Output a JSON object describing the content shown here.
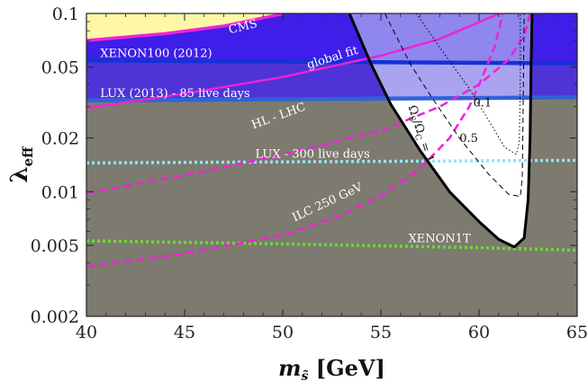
{
  "chart_data": {
    "type": "line",
    "xlabel_main": "m",
    "xlabel_sub": "s̃",
    "xlabel_unit": " [GeV]",
    "ylabel_main": "λ",
    "ylabel_sub": "eff",
    "xlim": [
      40,
      65
    ],
    "ylim": [
      0.002,
      0.1
    ],
    "yscale": "log",
    "x_ticks": [
      40,
      45,
      50,
      55,
      60,
      65
    ],
    "y_ticks": [
      0.002,
      0.005,
      0.01,
      0.02,
      0.05,
      0.1
    ],
    "y_tick_labels": [
      "0.002",
      "0.005",
      "0.01",
      "0.02",
      "0.05",
      "0.1"
    ],
    "colors": {
      "excluded_gray": "#7d7a6f",
      "blue_strong": "#3e1ee8",
      "blue_light": "#a9a3f0",
      "cms_yellow": "#fdf7a6",
      "magenta": "#ee22d8",
      "xenon100_line": "#1432d6",
      "lux2013_line": "#2f63d8",
      "lux300_line": "#8fe6f2",
      "xenon1t_line": "#66dd33",
      "allowed": "#ffffff"
    },
    "regions": [
      {
        "name": "excluded-gray",
        "label": ""
      },
      {
        "name": "XENON100 (2012)",
        "y_lower": 0.053
      },
      {
        "name": "LUX (2013) - 85 live days",
        "y_lower": 0.0315
      },
      {
        "name": "CMS",
        "label": "CMS"
      }
    ],
    "series": [
      {
        "name": "XENON100 (2012)",
        "style": "solid",
        "points": [
          [
            40,
            0.0545
          ],
          [
            65,
            0.0525
          ]
        ]
      },
      {
        "name": "LUX (2013) - 85 live days",
        "style": "solid",
        "points": [
          [
            40,
            0.0325
          ],
          [
            65,
            0.0338
          ]
        ]
      },
      {
        "name": "LUX - 300 live days",
        "style": "dotted",
        "points": [
          [
            40,
            0.0145
          ],
          [
            65,
            0.015
          ]
        ]
      },
      {
        "name": "XENON1T",
        "style": "dotted",
        "points": [
          [
            40,
            0.0053
          ],
          [
            50,
            0.0051
          ],
          [
            60,
            0.00485
          ],
          [
            65,
            0.0047
          ]
        ]
      },
      {
        "name": "CMS",
        "style": "solid",
        "points": [
          [
            40,
            0.0705
          ],
          [
            44,
            0.077
          ],
          [
            47,
            0.085
          ],
          [
            50,
            0.0995
          ]
        ]
      },
      {
        "name": "global fit",
        "style": "solid",
        "points": [
          [
            40,
            0.0295
          ],
          [
            45,
            0.0355
          ],
          [
            50,
            0.044
          ],
          [
            55,
            0.058
          ],
          [
            58,
            0.072
          ],
          [
            61,
            0.0995
          ]
        ]
      },
      {
        "name": "HL - LHC",
        "style": "dashed",
        "points": [
          [
            40,
            0.0098
          ],
          [
            45,
            0.0124
          ],
          [
            50,
            0.0161
          ],
          [
            55,
            0.022
          ],
          [
            58,
            0.03
          ],
          [
            60,
            0.04
          ],
          [
            61.5,
            0.055
          ],
          [
            62.3,
            0.075
          ],
          [
            62.6,
            0.099
          ]
        ]
      },
      {
        "name": "ILC 250 GeV",
        "style": "dashed",
        "points": [
          [
            40,
            0.0038
          ],
          [
            45,
            0.0045
          ],
          [
            50,
            0.0057
          ],
          [
            53,
            0.0074
          ],
          [
            55,
            0.0095
          ],
          [
            57,
            0.0135
          ],
          [
            58.5,
            0.02
          ],
          [
            59.5,
            0.03
          ],
          [
            60.2,
            0.045
          ],
          [
            60.8,
            0.065
          ],
          [
            61.2,
            0.099
          ]
        ]
      },
      {
        "name": "Ω_S/Ω_C = 1",
        "style": "solid",
        "points": [
          [
            53.4,
            0.1
          ],
          [
            54.5,
            0.052
          ],
          [
            55.5,
            0.031
          ],
          [
            57,
            0.017
          ],
          [
            58.5,
            0.01
          ],
          [
            60,
            0.0068
          ],
          [
            61,
            0.0054
          ],
          [
            61.8,
            0.0049
          ],
          [
            62.3,
            0.0055
          ],
          [
            62.5,
            0.009
          ],
          [
            62.6,
            0.02
          ],
          [
            62.65,
            0.05
          ],
          [
            62.7,
            0.1
          ]
        ]
      },
      {
        "name": "Ω_S/Ω_C = 0.5",
        "style": "dashed",
        "points": [
          [
            55.2,
            0.1
          ],
          [
            56.5,
            0.052
          ],
          [
            57.5,
            0.035
          ],
          [
            59,
            0.02
          ],
          [
            60.5,
            0.0125
          ],
          [
            61.5,
            0.0097
          ],
          [
            62.1,
            0.0094
          ],
          [
            62.2,
            0.012
          ],
          [
            62.25,
            0.03
          ],
          [
            62.3,
            0.1
          ]
        ]
      },
      {
        "name": "Ω_S/Ω_C = 0.1",
        "style": "dotted",
        "points": [
          [
            56.8,
            0.1
          ],
          [
            58.2,
            0.06
          ],
          [
            59.5,
            0.038
          ],
          [
            60.5,
            0.025
          ],
          [
            61.3,
            0.0178
          ],
          [
            61.9,
            0.0162
          ],
          [
            62.05,
            0.019
          ],
          [
            62.1,
            0.04
          ],
          [
            62.1,
            0.1
          ]
        ]
      }
    ],
    "annotations": [
      {
        "text": "CMS",
        "x": 47.3,
        "y": 0.077,
        "rotate": -14
      },
      {
        "text": "XENON100 (2012)",
        "x": 40.7,
        "y": 0.057,
        "rotate": 0
      },
      {
        "text": "global fit",
        "x": 51.3,
        "y": 0.049,
        "rotate": -17
      },
      {
        "text": "LUX (2013) - 85 live days",
        "x": 40.7,
        "y": 0.034,
        "rotate": 0
      },
      {
        "text": "HL - LHC",
        "x": 48.5,
        "y": 0.0225,
        "rotate": -20
      },
      {
        "text": "LUX - 300 live days",
        "x": 48.6,
        "y": 0.0155,
        "rotate": 0
      },
      {
        "text": "ILC 250 GeV",
        "x": 50.6,
        "y": 0.0068,
        "rotate": -25
      },
      {
        "text": "XENON1T",
        "x": 56.4,
        "y": 0.0052,
        "rotate": 0
      }
    ],
    "contour_labels": [
      {
        "text": "Ω",
        "sub": "S",
        "text2": "/Ω",
        "sub2": "C",
        "text3": " = 1",
        "x": 56.4,
        "y": 0.03,
        "rotate": 72
      },
      {
        "text": "0.5",
        "x": 59.0,
        "y": 0.019,
        "rotate": 0
      },
      {
        "text": "0.1",
        "x": 59.7,
        "y": 0.03,
        "rotate": 0
      }
    ]
  }
}
